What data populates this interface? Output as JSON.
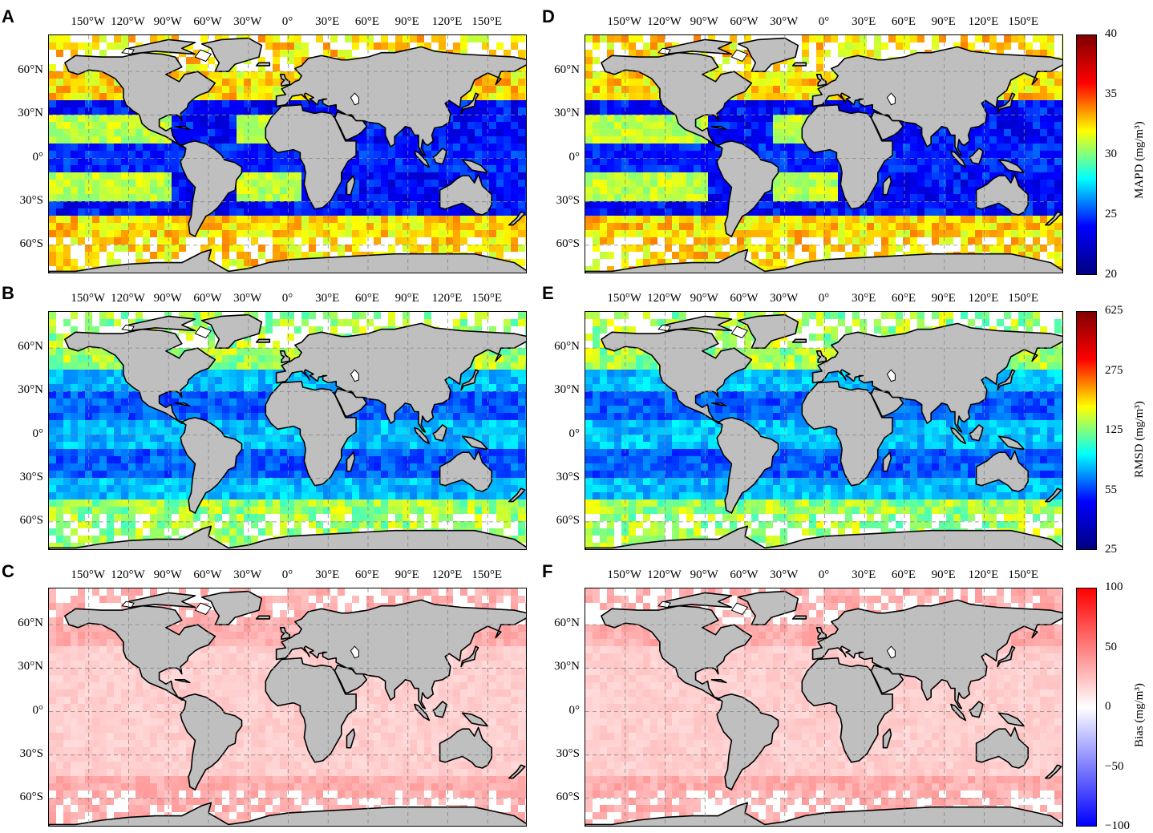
{
  "panels": [
    {
      "letter": "A",
      "metric": "mapd"
    },
    {
      "letter": "B",
      "metric": "rmsd"
    },
    {
      "letter": "C",
      "metric": "bias"
    },
    {
      "letter": "D",
      "metric": "mapd"
    },
    {
      "letter": "E",
      "metric": "rmsd"
    },
    {
      "letter": "F",
      "metric": "bias"
    }
  ],
  "lon_labels": [
    "150°W",
    "120°W",
    "90°W",
    "60°W",
    "30°W",
    "0°",
    "30°E",
    "60°E",
    "90°E",
    "120°E",
    "150°E"
  ],
  "lat_labels": [
    "60°N",
    "30°N",
    "0°",
    "30°S",
    "60°S"
  ],
  "colorbars": {
    "mapd": {
      "title": "MAPD (mg/m³)",
      "ticks": [
        "40",
        "35",
        "30",
        "25",
        "20"
      ],
      "colors": [
        "#800000",
        "#ff0000",
        "#ffff00",
        "#00ffff",
        "#0000ff",
        "#000080"
      ]
    },
    "rmsd": {
      "title": "RMSD (mg/m³)",
      "ticks": [
        "625",
        "275",
        "125",
        "55",
        "25"
      ],
      "colors": [
        "#800000",
        "#ff0000",
        "#ffff00",
        "#00ffff",
        "#0000ff",
        "#000080"
      ]
    },
    "bias": {
      "title": "Bias (mg/m³)",
      "ticks": [
        "100",
        "50",
        "0",
        "−50",
        "−100"
      ],
      "colors": [
        "#ff0000",
        "#ffffff",
        "#0000ff"
      ]
    }
  },
  "colors": {
    "land": "#bfbfbf",
    "coast": "#000000",
    "grid": "#888888",
    "no_data": "#ffffff"
  }
}
